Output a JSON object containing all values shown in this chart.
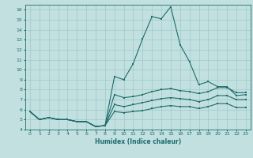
{
  "xlabel": "Humidex (Indice chaleur)",
  "xlim": [
    -0.5,
    23.5
  ],
  "ylim": [
    4,
    16.5
  ],
  "yticks": [
    4,
    5,
    6,
    7,
    8,
    9,
    10,
    11,
    12,
    13,
    14,
    15,
    16
  ],
  "xticks": [
    0,
    1,
    2,
    3,
    4,
    5,
    6,
    7,
    8,
    9,
    10,
    11,
    12,
    13,
    14,
    15,
    16,
    17,
    18,
    19,
    20,
    21,
    22,
    23
  ],
  "background_color": "#c2e0e0",
  "grid_color": "#9ec8c8",
  "line_color": "#1e6b6b",
  "line1_y": [
    5.8,
    5.0,
    5.2,
    5.0,
    5.0,
    4.8,
    4.8,
    4.3,
    4.4,
    9.3,
    9.0,
    10.6,
    13.1,
    15.3,
    15.1,
    16.3,
    12.5,
    10.8,
    8.5,
    8.8,
    8.3,
    8.3,
    7.4,
    7.5
  ],
  "line2_y": [
    5.8,
    5.0,
    5.2,
    5.0,
    5.0,
    4.8,
    4.8,
    4.3,
    4.4,
    7.5,
    7.2,
    7.3,
    7.5,
    7.8,
    8.0,
    8.1,
    7.9,
    7.8,
    7.6,
    7.8,
    8.2,
    8.2,
    7.7,
    7.7
  ],
  "line3_y": [
    5.8,
    5.0,
    5.2,
    5.0,
    5.0,
    4.8,
    4.8,
    4.3,
    4.4,
    6.5,
    6.3,
    6.5,
    6.7,
    6.9,
    7.1,
    7.2,
    7.1,
    7.0,
    6.8,
    7.0,
    7.4,
    7.4,
    7.0,
    7.0
  ],
  "line4_y": [
    5.8,
    5.0,
    5.2,
    5.0,
    5.0,
    4.8,
    4.8,
    4.3,
    4.4,
    5.8,
    5.7,
    5.8,
    5.9,
    6.1,
    6.3,
    6.4,
    6.3,
    6.3,
    6.1,
    6.3,
    6.6,
    6.6,
    6.2,
    6.2
  ]
}
